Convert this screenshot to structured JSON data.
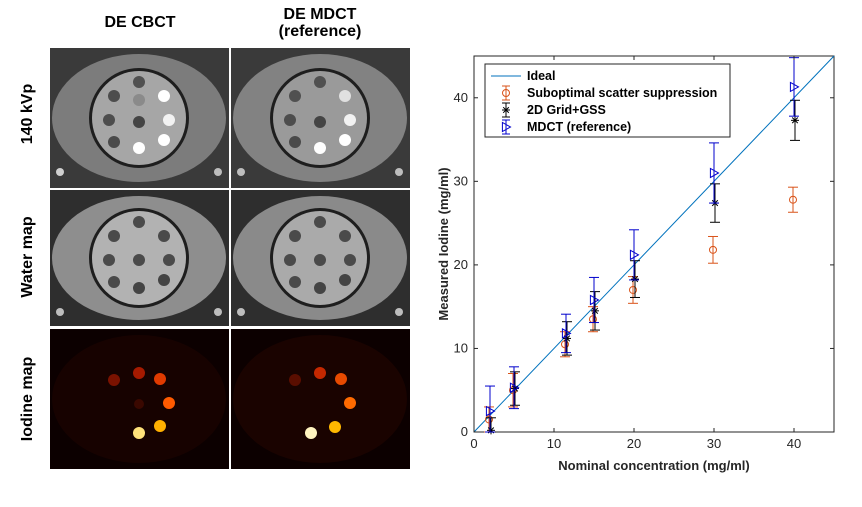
{
  "figure": {
    "column_titles": [
      "DE CBCT",
      "DE MDCT\n(reference)"
    ],
    "row_labels": [
      "140 kVp",
      "Water map",
      "Iodine map"
    ]
  },
  "chart_data": {
    "type": "scatter",
    "xlabel": "Nominal concentration (mg/ml)",
    "ylabel": "Measured Iodine (mg/ml)",
    "xlim": [
      0,
      45
    ],
    "ylim": [
      0,
      45
    ],
    "xticks": [
      0,
      10,
      20,
      30,
      40
    ],
    "yticks": [
      0,
      10,
      20,
      30,
      40
    ],
    "legend_position": "top-left",
    "series": [
      {
        "name": "Ideal",
        "marker": "line",
        "color": "#0072BD",
        "x": [
          0,
          45
        ],
        "y": [
          0,
          45
        ]
      },
      {
        "name": "Suboptimal scatter suppression",
        "marker": "circle",
        "color": "#D95319",
        "x": [
          2,
          5,
          11.5,
          15,
          20,
          30,
          40
        ],
        "y": [
          1.5,
          5.0,
          10.5,
          13.5,
          17.0,
          21.8,
          27.8
        ],
        "err": [
          1.5,
          2.0,
          1.5,
          1.5,
          1.6,
          1.6,
          1.5
        ]
      },
      {
        "name": "2D Grid+GSS",
        "marker": "star",
        "color": "#000000",
        "x": [
          2,
          5,
          11.5,
          15,
          20,
          30,
          40
        ],
        "y": [
          0.2,
          5.2,
          11.2,
          14.5,
          18.3,
          27.4,
          37.3
        ],
        "err": [
          1.5,
          2.0,
          2.0,
          2.3,
          2.2,
          2.3,
          2.4
        ]
      },
      {
        "name": "MDCT (reference)",
        "marker": "triangle",
        "color": "#0000CC",
        "x": [
          2,
          5,
          11.5,
          15,
          20,
          30,
          40
        ],
        "y": [
          2.5,
          5.3,
          11.8,
          15.8,
          21.2,
          31.0,
          41.3
        ],
        "err": [
          3.0,
          2.5,
          2.3,
          2.7,
          3.0,
          3.6,
          3.5
        ]
      }
    ]
  }
}
